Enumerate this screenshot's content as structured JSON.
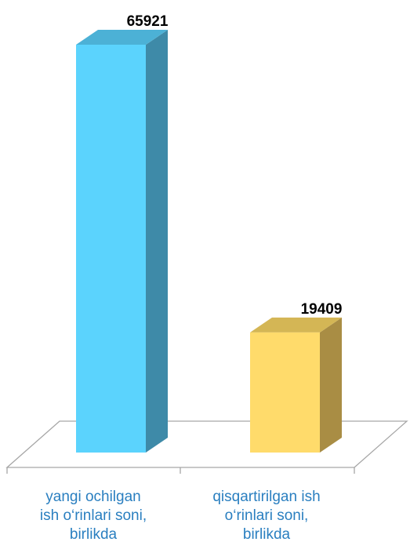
{
  "chart_data": {
    "type": "bar",
    "style": "3d",
    "categories": [
      [
        "yangi ochilgan",
        "ish o‘rinlari soni,",
        "birlikda"
      ],
      [
        "qisqartirilgan ish",
        "o‘rinlari soni,",
        "birlikda"
      ]
    ],
    "values": [
      65921,
      19409
    ],
    "data_labels": [
      "65921",
      "19409"
    ],
    "ylim": [
      0,
      65921
    ],
    "grid": false,
    "legend": "none",
    "colors": {
      "bar1_front": "#5bd3fd",
      "bar1_side": "#3e8aa8",
      "bar1_top": "#4cb1d6",
      "bar2_front": "#ffdb6b",
      "bar2_side": "#a98d44",
      "bar2_top": "#d4b655",
      "floor_line": "#a6a6a6",
      "label_text": "#2a7fc0",
      "value_text": "#000000"
    }
  }
}
